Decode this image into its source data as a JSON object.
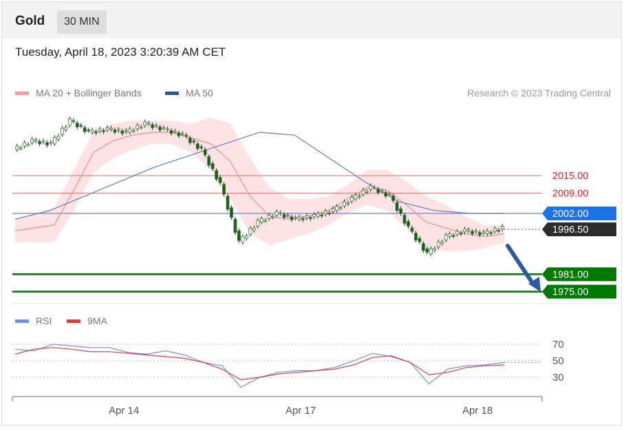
{
  "header": {
    "instrument": "Gold",
    "timeframe": "30 MIN"
  },
  "timestamp": "Tuesday, April 18, 2023 3:20:39 AM CET",
  "legend": {
    "ma20_label": "MA 20 + Bollinger Bands",
    "ma50_label": "MA 50",
    "rsi_label": "RSI",
    "rsi_ma_label": "9MA"
  },
  "credit": "Research © 2023 Trading Central",
  "colors": {
    "band_fill": "#fde0e0",
    "ma20": "#f08c8c",
    "ma50": "#5b7fbf",
    "bull": "#2e7d32",
    "bear": "#1b5e20",
    "resistance": "#f08080",
    "pivot": "#6e8ee0",
    "support": "#008000",
    "current": "#2b2b2b",
    "rsi": "#6f8fe6",
    "rsi_ma": "#e53935",
    "arrow": "#2a5aa0"
  },
  "chart_data": [
    {
      "type": "line",
      "subtype": "candlestick",
      "x_ticks": [
        "Apr 14",
        "Apr 17",
        "Apr 18"
      ],
      "levels": [
        {
          "name": "resistance",
          "value": "2015.00"
        },
        {
          "name": "resistance",
          "value": "2009.00"
        },
        {
          "name": "pivot",
          "value": "2002.00"
        },
        {
          "name": "current",
          "value": "1996.50"
        },
        {
          "name": "support",
          "value": "1981.00"
        },
        {
          "name": "support",
          "value": "1975.00"
        }
      ],
      "ylim": [
        1973,
        2040
      ],
      "ma20": [
        1996,
        1997,
        1998,
        2010,
        2023,
        2027,
        2029,
        2030,
        2030,
        2028,
        2026,
        2020,
        2008,
        2001,
        2000,
        2001,
        2003,
        2007,
        2011,
        2010,
        2005,
        1999,
        1997,
        1995,
        1994,
        1995
      ],
      "ma50": [
        2000,
        2003,
        2008,
        2013,
        2018,
        2022,
        2026,
        2030,
        2029,
        2021,
        2013,
        2006,
        2003,
        2002,
        2002
      ],
      "close": [
        2024,
        2027,
        2026,
        2034,
        2030,
        2031,
        2030,
        2033,
        2031,
        2029,
        2024,
        2012,
        1992,
        1999,
        2002,
        2000,
        2001,
        2003,
        2007,
        2011,
        2008,
        1997,
        1988,
        1994,
        1996,
        1995,
        1997
      ]
    },
    {
      "type": "line",
      "title": "",
      "series": [
        {
          "name": "RSI",
          "values": [
            64,
            62,
            70,
            68,
            66,
            66,
            60,
            58,
            62,
            57,
            48,
            44,
            18,
            30,
            36,
            38,
            38,
            42,
            50,
            59,
            55,
            48,
            22,
            40,
            44,
            45,
            48
          ]
        },
        {
          "name": "9MA",
          "values": [
            58,
            64,
            66,
            64,
            61,
            61,
            59,
            57,
            55,
            53,
            48,
            40,
            27,
            30,
            34,
            36,
            38,
            40,
            45,
            54,
            56,
            48,
            33,
            36,
            42,
            44,
            45
          ]
        }
      ],
      "y_ticks": [
        "70",
        "50",
        "30"
      ],
      "ylim": [
        10,
        85
      ]
    }
  ]
}
